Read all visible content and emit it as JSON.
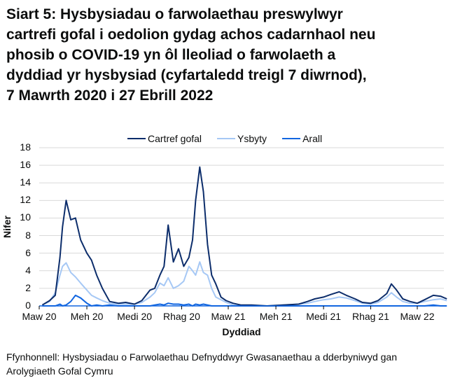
{
  "title_lines": [
    "Siart 5: Hysbysiadau o farwolaethau preswylwyr",
    "cartrefi gofal i oedolion gydag achos cadarnhaol neu",
    "phosib o COVID-19 yn ôl lleoliad o farwolaeth a",
    "dyddiad yr hysbysiad (cyfartaledd treigl 7 diwrnod),",
    "7 Mawrth 2020 i 27 Ebrill 2022"
  ],
  "source": {
    "line1": "Ffynhonnell: Hysbysiadau o Farwolaethau Defnyddwyr Gwasanaethau a dderbyniwyd gan",
    "line2": "Arolygiaeth Gofal Cymru"
  },
  "colors": {
    "cartref_gofal": "#0c2d6b",
    "ysbyty": "#a6c8f5",
    "arall": "#1266e0",
    "grid": "#d9d9d9",
    "axis": "#1266e0"
  },
  "chart_data": {
    "type": "line",
    "title": "Siart 5: Hysbysiadau o farwolaethau preswylwyr cartrefi gofal i oedolion gydag achos cadarnhaol neu phosib o COVID-19 yn ôl lleoliad o farwolaeth a dyddiad yr hysbysiad (cyfartaledd treigl 7 diwrnod), 7 Mawrth 2020 i 27 Ebrill 2022",
    "xlabel": "Dyddiad",
    "ylabel": "Nifer",
    "ylim": [
      0,
      18
    ],
    "yticks": [
      0,
      2,
      4,
      6,
      8,
      10,
      12,
      14,
      16,
      18
    ],
    "xtick_labels": [
      "Maw 20",
      "Meh 20",
      "Medi 20",
      "Rhag 20",
      "Maw 21",
      "Meh 21",
      "Medi 21",
      "Rhag 21",
      "Maw 22"
    ],
    "grid": true,
    "legend_position": "top",
    "legend": [
      "Cartref gofal",
      "Ysbyty",
      "Arall"
    ],
    "x": [
      "2020-03-07",
      "2020-03-21",
      "2020-04-01",
      "2020-04-10",
      "2020-04-15",
      "2020-04-22",
      "2020-05-01",
      "2020-05-10",
      "2020-05-20",
      "2020-06-01",
      "2020-06-10",
      "2020-06-20",
      "2020-07-01",
      "2020-07-15",
      "2020-08-01",
      "2020-08-15",
      "2020-09-01",
      "2020-09-15",
      "2020-10-01",
      "2020-10-10",
      "2020-10-20",
      "2020-10-28",
      "2020-11-05",
      "2020-11-15",
      "2020-11-25",
      "2020-12-05",
      "2020-12-15",
      "2020-12-22",
      "2020-12-28",
      "2021-01-05",
      "2021-01-12",
      "2021-01-20",
      "2021-01-28",
      "2021-02-05",
      "2021-02-15",
      "2021-02-25",
      "2021-03-10",
      "2021-03-25",
      "2021-04-15",
      "2021-05-15",
      "2021-06-15",
      "2021-07-15",
      "2021-08-01",
      "2021-08-15",
      "2021-09-01",
      "2021-09-15",
      "2021-10-01",
      "2021-10-15",
      "2021-11-01",
      "2021-11-15",
      "2021-12-01",
      "2021-12-15",
      "2022-01-01",
      "2022-01-10",
      "2022-01-20",
      "2022-02-01",
      "2022-02-15",
      "2022-03-01",
      "2022-03-15",
      "2022-04-01",
      "2022-04-15",
      "2022-04-27"
    ],
    "series": [
      {
        "name": "Cartref gofal",
        "values": [
          0.1,
          0.6,
          1.2,
          5.5,
          9.0,
          12.0,
          9.8,
          10.0,
          7.5,
          6.0,
          5.2,
          3.5,
          2.0,
          0.5,
          0.3,
          0.4,
          0.2,
          0.6,
          1.8,
          2.0,
          3.5,
          4.5,
          9.2,
          5.0,
          6.5,
          4.5,
          5.5,
          7.5,
          12.0,
          15.8,
          13.0,
          7.0,
          3.5,
          2.5,
          1.0,
          0.6,
          0.3,
          0.1,
          0.1,
          0.0,
          0.1,
          0.2,
          0.5,
          0.8,
          1.0,
          1.3,
          1.6,
          1.2,
          0.8,
          0.4,
          0.3,
          0.6,
          1.4,
          2.5,
          1.8,
          0.8,
          0.5,
          0.3,
          0.7,
          1.2,
          1.1,
          0.8
        ]
      },
      {
        "name": "Ysbyty",
        "values": [
          0.1,
          0.5,
          1.5,
          3.5,
          4.5,
          4.9,
          3.8,
          3.3,
          2.6,
          1.8,
          1.2,
          0.9,
          0.6,
          0.3,
          0.2,
          0.2,
          0.2,
          0.4,
          1.0,
          1.5,
          2.6,
          2.3,
          3.2,
          2.0,
          2.3,
          2.8,
          4.5,
          4.0,
          3.5,
          5.0,
          3.8,
          3.5,
          2.0,
          1.0,
          0.7,
          0.4,
          0.1,
          0.0,
          0.0,
          0.0,
          0.1,
          0.2,
          0.3,
          0.5,
          0.7,
          0.8,
          1.0,
          0.9,
          0.6,
          0.3,
          0.2,
          0.4,
          1.0,
          1.5,
          1.0,
          0.5,
          0.3,
          0.3,
          0.5,
          0.7,
          0.8,
          0.6
        ]
      },
      {
        "name": "Arall",
        "values": [
          0.0,
          0.0,
          0.0,
          0.2,
          0.0,
          0.1,
          0.5,
          1.2,
          0.9,
          0.3,
          0.0,
          0.1,
          0.0,
          0.1,
          0.0,
          0.0,
          0.0,
          0.0,
          0.0,
          0.1,
          0.2,
          0.1,
          0.3,
          0.2,
          0.2,
          0.1,
          0.2,
          0.0,
          0.2,
          0.1,
          0.2,
          0.1,
          0.0,
          0.0,
          0.0,
          0.0,
          0.0,
          0.0,
          0.0,
          0.0,
          0.0,
          0.0,
          0.0,
          0.0,
          0.0,
          0.0,
          0.0,
          0.0,
          0.0,
          0.0,
          0.0,
          0.0,
          0.0,
          0.0,
          0.0,
          0.0,
          0.0,
          0.0,
          0.0,
          0.1,
          0.0,
          0.0
        ]
      }
    ]
  }
}
